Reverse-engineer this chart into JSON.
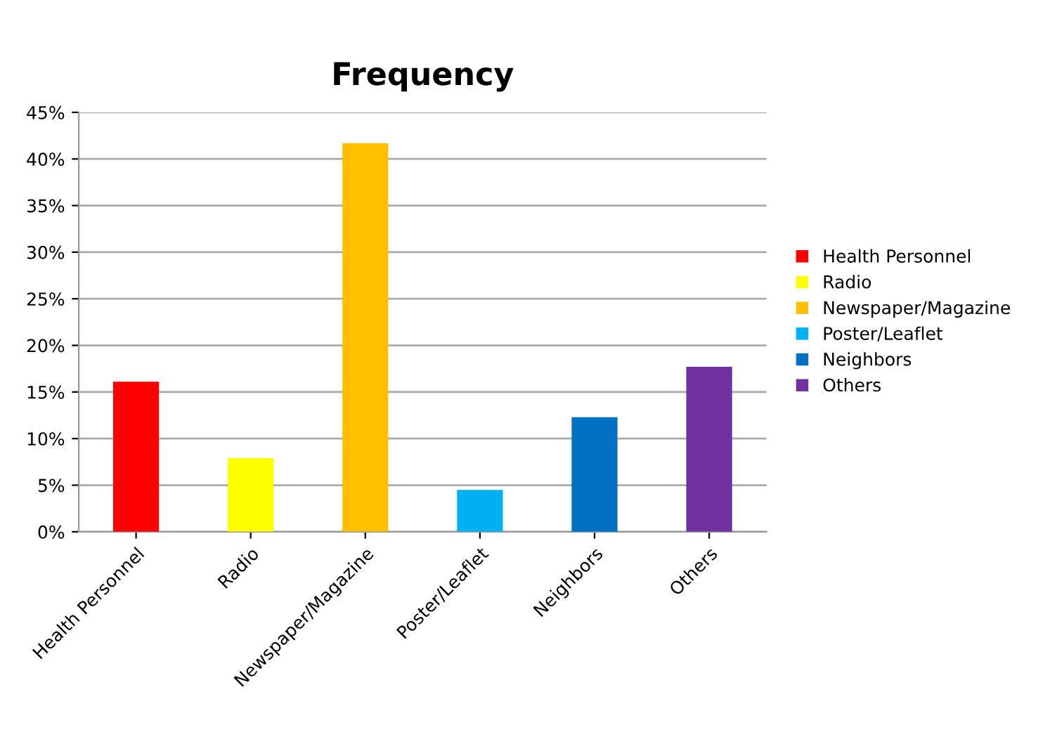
{
  "chart_data": {
    "type": "bar",
    "title": "Frequency",
    "categories": [
      "Health Personnel",
      "Radio",
      "Newspaper/Magazine",
      "Poster/Leaflet",
      "Neighbors",
      "Others"
    ],
    "series": [
      {
        "name": "Health Personnel",
        "color": "#ff0000",
        "values": [
          16.1,
          null,
          null,
          null,
          null,
          null
        ]
      },
      {
        "name": "Radio",
        "color": "#ffff00",
        "values": [
          null,
          7.9,
          null,
          null,
          null,
          null
        ]
      },
      {
        "name": "Newspaper/Magazine",
        "color": "#ffc000",
        "values": [
          null,
          null,
          41.7,
          null,
          null,
          null
        ]
      },
      {
        "name": "Poster/Leaflet",
        "color": "#00b0f0",
        "values": [
          null,
          null,
          null,
          4.5,
          null,
          null
        ]
      },
      {
        "name": "Neighbors",
        "color": "#0070c0",
        "values": [
          null,
          null,
          null,
          null,
          12.3,
          null
        ]
      },
      {
        "name": "Others",
        "color": "#7030a0",
        "values": [
          null,
          null,
          null,
          null,
          null,
          17.7
        ]
      }
    ],
    "ylim": [
      0,
      45
    ],
    "yticks": [
      {
        "value": 0,
        "label": "0%"
      },
      {
        "value": 5,
        "label": "5%"
      },
      {
        "value": 10,
        "label": "10%"
      },
      {
        "value": 15,
        "label": "15%"
      },
      {
        "value": 20,
        "label": "20%"
      },
      {
        "value": 25,
        "label": "25%"
      },
      {
        "value": 30,
        "label": "30%"
      },
      {
        "value": 35,
        "label": "35%"
      },
      {
        "value": 40,
        "label": "40%"
      },
      {
        "value": 45,
        "label": "45%"
      }
    ],
    "grid": "y",
    "legend": "right"
  }
}
